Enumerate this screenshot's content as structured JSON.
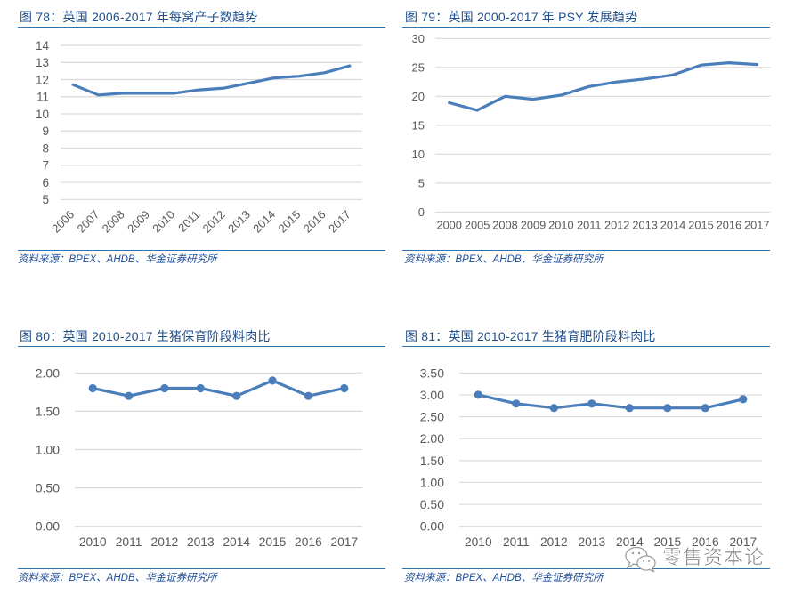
{
  "colors": {
    "title": "#1F4E8C",
    "rule": "#2E75B6",
    "series": "#4A7EBB",
    "grid": "#D9D9D9",
    "axis_text": "#595959",
    "source": "#1F4E9A"
  },
  "watermark": {
    "icon": "wechat-icon",
    "text": "零售资本论"
  },
  "chart_data": [
    {
      "type": "line",
      "title": "图 78：英国 2006-2017 年每窝产子数趋势",
      "source": "资料来源：BPEX、AHDB、华金证券研究所",
      "xlabel": "",
      "ylabel": "",
      "categories": [
        "2006",
        "2007",
        "2008",
        "2009",
        "2010",
        "2011",
        "2012",
        "2013",
        "2014",
        "2015",
        "2016",
        "2017"
      ],
      "values": [
        11.7,
        11.1,
        11.2,
        11.2,
        11.2,
        11.4,
        11.5,
        11.8,
        12.1,
        12.2,
        12.4,
        12.8
      ],
      "ylim": [
        5,
        14
      ],
      "yticks": [
        5,
        6,
        7,
        8,
        9,
        10,
        11,
        12,
        13,
        14
      ],
      "ytick_labels": [
        "5",
        "6",
        "7",
        "8",
        "9",
        "10",
        "11",
        "12",
        "13",
        "14"
      ],
      "x_tick_rotation": "diagonal",
      "markers": false,
      "grid": true,
      "legend": "none"
    },
    {
      "type": "line",
      "title": "图 79：英国 2000-2017 年 PSY 发展趋势",
      "source": "资料来源：BPEX、AHDB、华金证券研究所",
      "xlabel": "",
      "ylabel": "",
      "categories": [
        "2000",
        "2005",
        "2008",
        "2009",
        "2010",
        "2011",
        "2012",
        "2013",
        "2014",
        "2015",
        "2016",
        "2017"
      ],
      "values": [
        18.9,
        17.6,
        20.0,
        19.5,
        20.2,
        21.7,
        22.5,
        23.0,
        23.7,
        25.4,
        25.8,
        25.5
      ],
      "ylim": [
        0,
        30
      ],
      "yticks": [
        0,
        5,
        10,
        15,
        20,
        25,
        30
      ],
      "ytick_labels": [
        "0",
        "5",
        "10",
        "15",
        "20",
        "25",
        "30"
      ],
      "markers": false,
      "grid": true,
      "legend": "none"
    },
    {
      "type": "line",
      "title": "图 80：英国 2010-2017 生猪保育阶段料肉比",
      "source": "资料来源：BPEX、AHDB、华金证券研究所",
      "xlabel": "",
      "ylabel": "",
      "categories": [
        "2010",
        "2011",
        "2012",
        "2013",
        "2014",
        "2015",
        "2016",
        "2017"
      ],
      "values": [
        1.8,
        1.7,
        1.8,
        1.8,
        1.7,
        1.9,
        1.7,
        1.8
      ],
      "ylim": [
        0,
        2
      ],
      "yticks": [
        0,
        0.5,
        1.0,
        1.5,
        2.0
      ],
      "ytick_labels": [
        "0.00",
        "0.50",
        "1.00",
        "1.50",
        "2.00"
      ],
      "markers": true,
      "grid": true,
      "legend": "none"
    },
    {
      "type": "line",
      "title": "图 81：英国 2010-2017 生猪育肥阶段料肉比",
      "source": "资料来源：BPEX、AHDB、华金证券研究所",
      "xlabel": "",
      "ylabel": "",
      "categories": [
        "2010",
        "2011",
        "2012",
        "2013",
        "2014",
        "2015",
        "2016",
        "2017"
      ],
      "values": [
        3.0,
        2.8,
        2.7,
        2.8,
        2.7,
        2.7,
        2.7,
        2.9
      ],
      "ylim": [
        0,
        3.5
      ],
      "yticks": [
        0,
        0.5,
        1.0,
        1.5,
        2.0,
        2.5,
        3.0,
        3.5
      ],
      "ytick_labels": [
        "0.00",
        "0.50",
        "1.00",
        "1.50",
        "2.00",
        "2.50",
        "3.00",
        "3.50"
      ],
      "markers": true,
      "grid": true,
      "legend": "none"
    }
  ]
}
